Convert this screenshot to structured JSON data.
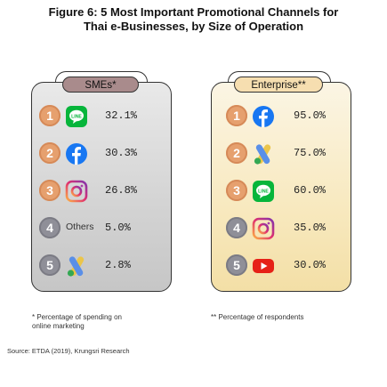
{
  "title": {
    "line1": "Figure 6: 5 Most Important Promotional Channels for",
    "line2": "Thai e-Businesses, by Size of Operation"
  },
  "chart_data": {
    "type": "table",
    "panels": [
      {
        "label": "SMEs*",
        "items": [
          {
            "rank": "1",
            "channel": "LINE",
            "icon": "line-icon",
            "value": "32.1%"
          },
          {
            "rank": "2",
            "channel": "Facebook",
            "icon": "facebook-icon",
            "value": "30.3%"
          },
          {
            "rank": "3",
            "channel": "Instagram",
            "icon": "instagram-icon",
            "value": "26.8%"
          },
          {
            "rank": "4",
            "channel": "Others",
            "icon": "",
            "value": "5.0%"
          },
          {
            "rank": "5",
            "channel": "Google Ads",
            "icon": "google-ads-icon",
            "value": "2.8%"
          }
        ]
      },
      {
        "label": "Enterprise**",
        "items": [
          {
            "rank": "1",
            "channel": "Facebook",
            "icon": "facebook-icon",
            "value": "95.0%"
          },
          {
            "rank": "2",
            "channel": "Google Ads",
            "icon": "google-ads-icon",
            "value": "75.0%"
          },
          {
            "rank": "3",
            "channel": "LINE",
            "icon": "line-icon",
            "value": "60.0%"
          },
          {
            "rank": "4",
            "channel": "Instagram",
            "icon": "instagram-icon",
            "value": "35.0%"
          },
          {
            "rank": "5",
            "channel": "YouTube",
            "icon": "youtube-icon",
            "value": "30.0%"
          }
        ]
      }
    ]
  },
  "notes": {
    "sme_line1": "* Percentage of spending on",
    "sme_line2": "online marketing",
    "ent": "** Percentage of respondents"
  },
  "source": "Source: ETDA (2019), Krungsri Research",
  "colors": {
    "rank_top": "#e6a06e",
    "rank_other": "#8f8f98",
    "line": "#07b53b",
    "facebook": "#1877f2",
    "instagram": "#d6249f",
    "youtube": "#e62117",
    "sme_tag": "#a98b8c",
    "ent_tag": "#f6deb0"
  }
}
